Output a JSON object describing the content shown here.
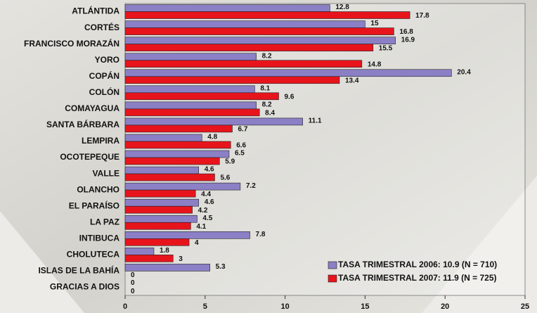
{
  "chart_data": {
    "type": "bar",
    "orientation": "horizontal",
    "categories": [
      "ATLÁNTIDA",
      "CORTÉS",
      "FRANCISCO MORAZÁN",
      "YORO",
      "COPÁN",
      "COLÓN",
      "COMAYAGUA",
      "SANTA BÁRBARA",
      "LEMPIRA",
      "OCOTEPEQUE",
      "VALLE",
      "OLANCHO",
      "EL PARAÍSO",
      "LA PAZ",
      "INTIBUCA",
      "CHOLUTECA",
      "ISLAS DE LA BAHÍA",
      "GRACIAS A DIOS"
    ],
    "series": [
      {
        "name": "TASA TRIMESTRAL 2006: 10.9 (N = 710)",
        "color": "#8b80c6",
        "values": [
          12.8,
          15,
          16.9,
          8.2,
          20.4,
          8.1,
          8.2,
          11.1,
          4.8,
          6.5,
          4.6,
          7.2,
          4.6,
          4.5,
          7.8,
          1.8,
          5.3,
          0
        ]
      },
      {
        "name": "TASA TRIMESTRAL 2007: 11.9 (N = 725)",
        "color": "#e8141c",
        "values": [
          17.8,
          16.8,
          15.5,
          14.8,
          13.4,
          9.6,
          8.4,
          6.7,
          6.6,
          5.9,
          5.6,
          4.4,
          4.2,
          4.1,
          4,
          3,
          0,
          0
        ]
      }
    ],
    "xlim": [
      0,
      25
    ],
    "xticks": [
      0,
      5,
      10,
      15,
      20,
      25
    ],
    "legend": "lower right"
  }
}
